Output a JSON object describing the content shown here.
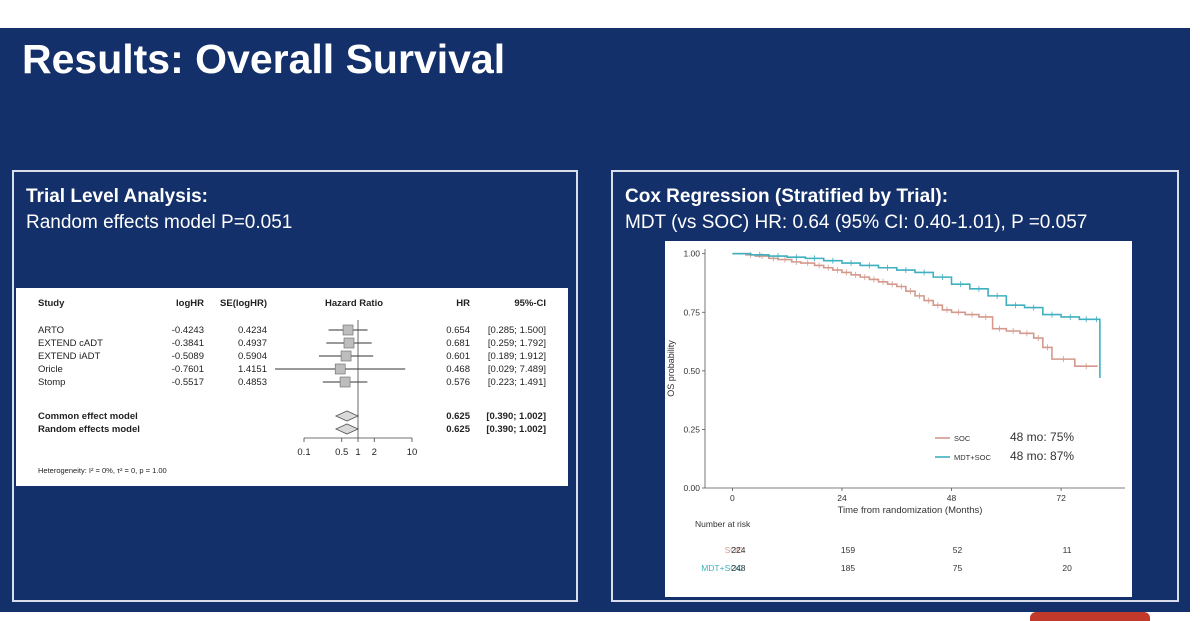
{
  "slide": {
    "title": "Results: Overall Survival"
  },
  "left_panel": {
    "heading": "Trial Level Analysis:",
    "subheading": "Random effects model P=0.051"
  },
  "right_panel": {
    "heading": "Cox Regression (Stratified by Trial):",
    "subheading": "MDT (vs SOC) HR: 0.64 (95% CI: 0.40-1.01), P =0.057"
  },
  "chart_data": [
    {
      "type": "forest",
      "columns": {
        "study": "Study",
        "loghr": "logHR",
        "se": "SE(logHR)",
        "plot": "Hazard Ratio",
        "hr": "HR",
        "ci": "95%-CI"
      },
      "studies": [
        {
          "name": "ARTO",
          "loghr": "-0.4243",
          "se": "0.4234",
          "hr": 0.654,
          "lo": 0.285,
          "hi": 1.5,
          "hr_text": "0.654",
          "ci_text": "[0.285; 1.500]"
        },
        {
          "name": "EXTEND cADT",
          "loghr": "-0.3841",
          "se": "0.4937",
          "hr": 0.681,
          "lo": 0.259,
          "hi": 1.792,
          "hr_text": "0.681",
          "ci_text": "[0.259; 1.792]"
        },
        {
          "name": "EXTEND iADT",
          "loghr": "-0.5089",
          "se": "0.5904",
          "hr": 0.601,
          "lo": 0.189,
          "hi": 1.912,
          "hr_text": "0.601",
          "ci_text": "[0.189; 1.912]"
        },
        {
          "name": "Oricle",
          "loghr": "-0.7601",
          "se": "1.4151",
          "hr": 0.468,
          "lo": 0.029,
          "hi": 7.489,
          "hr_text": "0.468",
          "ci_text": "[0.029; 7.489]"
        },
        {
          "name": "Stomp",
          "loghr": "-0.5517",
          "se": "0.4853",
          "hr": 0.576,
          "lo": 0.223,
          "hi": 1.491,
          "hr_text": "0.576",
          "ci_text": "[0.223; 1.491]"
        }
      ],
      "pooled": [
        {
          "name": "Common effect model",
          "hr": 0.625,
          "lo": 0.39,
          "hi": 1.002,
          "hr_text": "0.625",
          "ci_text": "[0.390; 1.002]"
        },
        {
          "name": "Random effects model",
          "hr": 0.625,
          "lo": 0.39,
          "hi": 1.002,
          "hr_text": "0.625",
          "ci_text": "[0.390; 1.002]"
        }
      ],
      "x_ticks": [
        {
          "value": 0.1,
          "label": "0.1"
        },
        {
          "value": 0.5,
          "label": "0.5"
        },
        {
          "value": 1,
          "label": "1"
        },
        {
          "value": 2,
          "label": "2"
        },
        {
          "value": 10,
          "label": "10"
        }
      ],
      "xscale": "log",
      "xlim": [
        0.1,
        10
      ],
      "heterogeneity": "Heterogeneity: I² = 0%, τ² = 0, p = 1.00"
    },
    {
      "type": "line",
      "ylabel": "OS probability",
      "xlabel": "Time from randomization (Months)",
      "xlim": [
        -6,
        86
      ],
      "ylim": [
        0,
        1.02
      ],
      "x_ticks": [
        {
          "value": 0,
          "label": "0"
        },
        {
          "value": 24,
          "label": "24"
        },
        {
          "value": 48,
          "label": "48"
        },
        {
          "value": 72,
          "label": "72"
        }
      ],
      "y_ticks": [
        {
          "value": 0,
          "label": "0.00"
        },
        {
          "value": 0.25,
          "label": "0.25"
        },
        {
          "value": 0.5,
          "label": "0.50"
        },
        {
          "value": 0.75,
          "label": "0.75"
        },
        {
          "value": 1,
          "label": "1.00"
        }
      ],
      "series": [
        {
          "name": "SOC",
          "color": "#d4998c",
          "x": [
            0,
            3,
            5,
            8,
            10,
            13,
            15,
            18,
            20,
            22,
            24,
            26,
            28,
            30,
            32,
            34,
            36,
            38,
            40,
            42,
            44,
            46,
            48,
            51,
            54,
            57,
            60,
            63,
            66,
            68,
            70,
            75,
            80
          ],
          "y": [
            1.0,
            0.995,
            0.99,
            0.98,
            0.975,
            0.965,
            0.96,
            0.95,
            0.94,
            0.93,
            0.92,
            0.91,
            0.9,
            0.89,
            0.88,
            0.87,
            0.86,
            0.84,
            0.82,
            0.8,
            0.78,
            0.76,
            0.75,
            0.74,
            0.73,
            0.68,
            0.67,
            0.66,
            0.64,
            0.6,
            0.55,
            0.52,
            0.52
          ],
          "annotation": "48 mo: 75%"
        },
        {
          "name": "MDT+SOC",
          "color": "#3fb0bf",
          "x": [
            0,
            4,
            8,
            12,
            16,
            20,
            24,
            28,
            32,
            36,
            40,
            44,
            48,
            52,
            56,
            60,
            64,
            68,
            72,
            76,
            79,
            80.5
          ],
          "y": [
            1.0,
            0.995,
            0.99,
            0.985,
            0.98,
            0.97,
            0.96,
            0.95,
            0.94,
            0.93,
            0.92,
            0.9,
            0.87,
            0.85,
            0.82,
            0.78,
            0.77,
            0.74,
            0.73,
            0.72,
            0.72,
            0.47
          ],
          "annotation": "48 mo: 87%"
        }
      ],
      "risk_table": {
        "title": "Number at risk",
        "times": [
          0,
          24,
          48,
          72
        ],
        "rows": [
          {
            "name": "SOC",
            "values": [
              "224",
              "159",
              "52",
              "11"
            ]
          },
          {
            "name": "MDT+SOC",
            "values": [
              "248",
              "185",
              "75",
              "20"
            ]
          }
        ]
      },
      "legend_position": "bottom-right"
    }
  ]
}
